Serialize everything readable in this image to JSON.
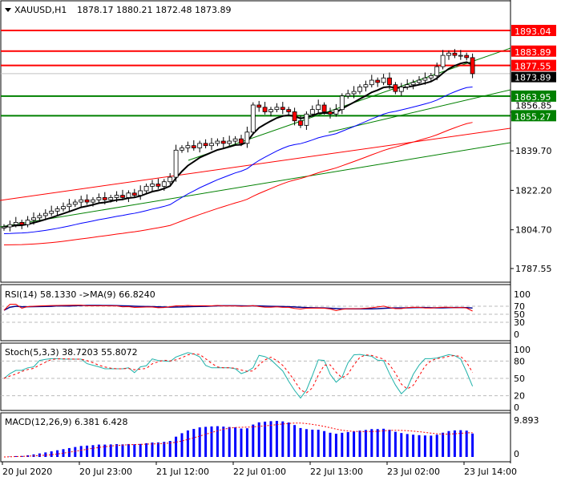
{
  "header": {
    "symbol": "XAUUSD,H1",
    "ohlc": "1878.17 1880.21 1872.48 1873.89"
  },
  "colors": {
    "up": "#000000",
    "down": "#ff0000",
    "resistance": "#ff0000",
    "support": "#008000",
    "ma_fast": "#000000",
    "ma_mid": "#0000ff",
    "ma_slow": "#ff0000",
    "macd": "#0000ff",
    "stoch_main": "#20b2aa"
  },
  "chart_data": [
    {
      "type": "candlestick",
      "title": "XAUUSD,H1",
      "ylim": [
        1782,
        1906
      ],
      "price_ticks": [
        "1787.55",
        "1804.70",
        "1822.20",
        "1839.70",
        "1856.85"
      ],
      "time_ticks": [
        "20 Jul 2020",
        "20 Jul 23:00",
        "21 Jul 12:00",
        "22 Jul 01:00",
        "22 Jul 13:00",
        "23 Jul 02:00",
        "23 Jul 14:00"
      ],
      "closes": [
        1806,
        1807,
        1808,
        1807,
        1809,
        1810,
        1811,
        1812,
        1813,
        1814,
        1815,
        1816,
        1817,
        1818,
        1817,
        1818,
        1819,
        1818,
        1819,
        1820,
        1819,
        1821,
        1820,
        1822,
        1824,
        1825,
        1824,
        1826,
        1828,
        1840,
        1841,
        1842,
        1841,
        1843,
        1842,
        1843,
        1844,
        1843,
        1844,
        1845,
        1843,
        1848,
        1860,
        1859,
        1857,
        1858,
        1859,
        1858,
        1857,
        1853,
        1851,
        1856,
        1858,
        1860,
        1857,
        1856,
        1858,
        1864,
        1865,
        1866,
        1868,
        1869,
        1871,
        1870,
        1872,
        1869,
        1866,
        1868,
        1869,
        1870,
        1871,
        1872,
        1873,
        1877,
        1882,
        1883,
        1882,
        1882,
        1881,
        1873.89
      ],
      "levels": [
        {
          "value": 1893.04,
          "label": "1893.04",
          "kind": "resistance"
        },
        {
          "value": 1883.89,
          "label": "1883.89",
          "kind": "resistance"
        },
        {
          "value": 1877.55,
          "label": "1877.55",
          "kind": "resistance"
        },
        {
          "value": 1863.95,
          "label": "1863.95",
          "kind": "support"
        },
        {
          "value": 1855.27,
          "label": "1855.27",
          "kind": "support"
        }
      ],
      "current_price": {
        "value": 1873.89,
        "label": "1873.89"
      }
    },
    {
      "type": "line",
      "title": "RSI(14) 58.1330  ->MA(9) 66.8240",
      "ticks": [
        "100",
        "70",
        "50",
        "30",
        "0"
      ],
      "ylim": [
        0,
        100
      ]
    },
    {
      "type": "line",
      "title": "Stoch(5,3,3) 38.7203 55.8072",
      "ticks": [
        "100",
        "80",
        "50",
        "20",
        "0"
      ],
      "ylim": [
        0,
        100
      ]
    },
    {
      "type": "bar",
      "title": "MACD(12,26,9) 6.381 6.428",
      "ticks": [
        "9.893",
        "0"
      ]
    }
  ]
}
